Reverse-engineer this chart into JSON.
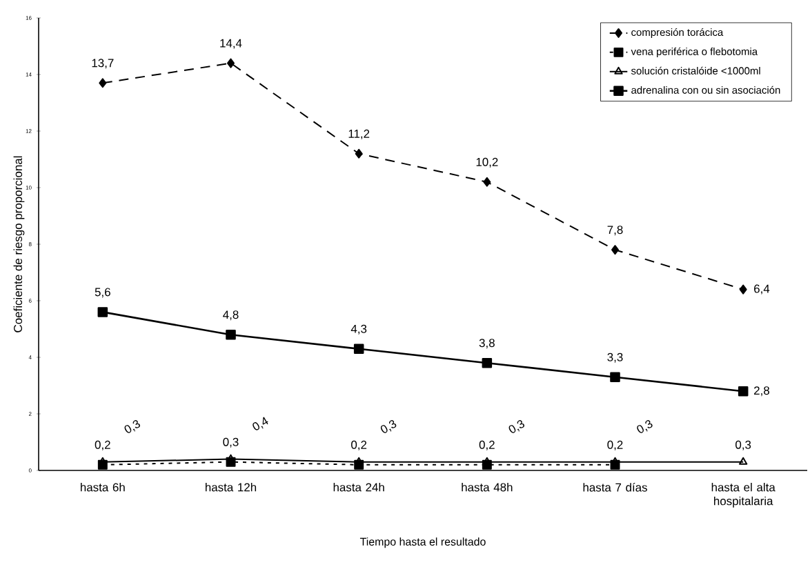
{
  "chart_data": {
    "type": "line",
    "xlabel": "Tiempo hasta el resultado",
    "ylabel": "Coeficiente de riesgo proporcional",
    "categories": [
      "hasta 6h",
      "hasta 12h",
      "hasta 24h",
      "hasta 48h",
      "hasta 7 días",
      "hasta el alta hospitalaria"
    ],
    "series": [
      {
        "name": "compresión torácica",
        "color": "#000000",
        "marker": "diamond",
        "line_style": "dashed",
        "values": [
          13.7,
          14.4,
          11.2,
          10.2,
          7.8,
          6.4
        ],
        "value_labels": [
          "13,7",
          "14,4",
          "11,2",
          "10,2",
          "7,8",
          "6,4"
        ]
      },
      {
        "name": "vena periférica o flebotomia",
        "color": "#000000",
        "marker": "square",
        "line_style": "dotted",
        "values": [
          0.2,
          0.3,
          0.2,
          0.2,
          0.2,
          null
        ],
        "value_labels": [
          "0,2",
          "0,3",
          "0,2",
          "0,2",
          "0,2",
          null
        ]
      },
      {
        "name": "solución cristalóide <1000ml",
        "color": "#000000",
        "marker": "triangle",
        "line_style": "solid",
        "values": [
          0.3,
          0.4,
          0.3,
          0.3,
          0.3,
          0.3
        ],
        "value_labels": [
          "0,3",
          "0,4",
          "0,3",
          "0,3",
          "0,3",
          "0,3"
        ]
      },
      {
        "name": "adrenalina con ou sin asociación",
        "color": "#000000",
        "marker": "square",
        "line_style": "solid",
        "values": [
          5.6,
          4.8,
          4.3,
          3.8,
          3.3,
          2.8
        ],
        "value_labels": [
          "5,6",
          "4,8",
          "4,3",
          "3,8",
          "3,3",
          "2,8"
        ]
      }
    ],
    "ylim": [
      0,
      16
    ],
    "yticks": [
      0,
      2,
      4,
      6,
      8,
      10,
      12,
      14,
      16
    ],
    "grid": false,
    "legend": "top right"
  }
}
